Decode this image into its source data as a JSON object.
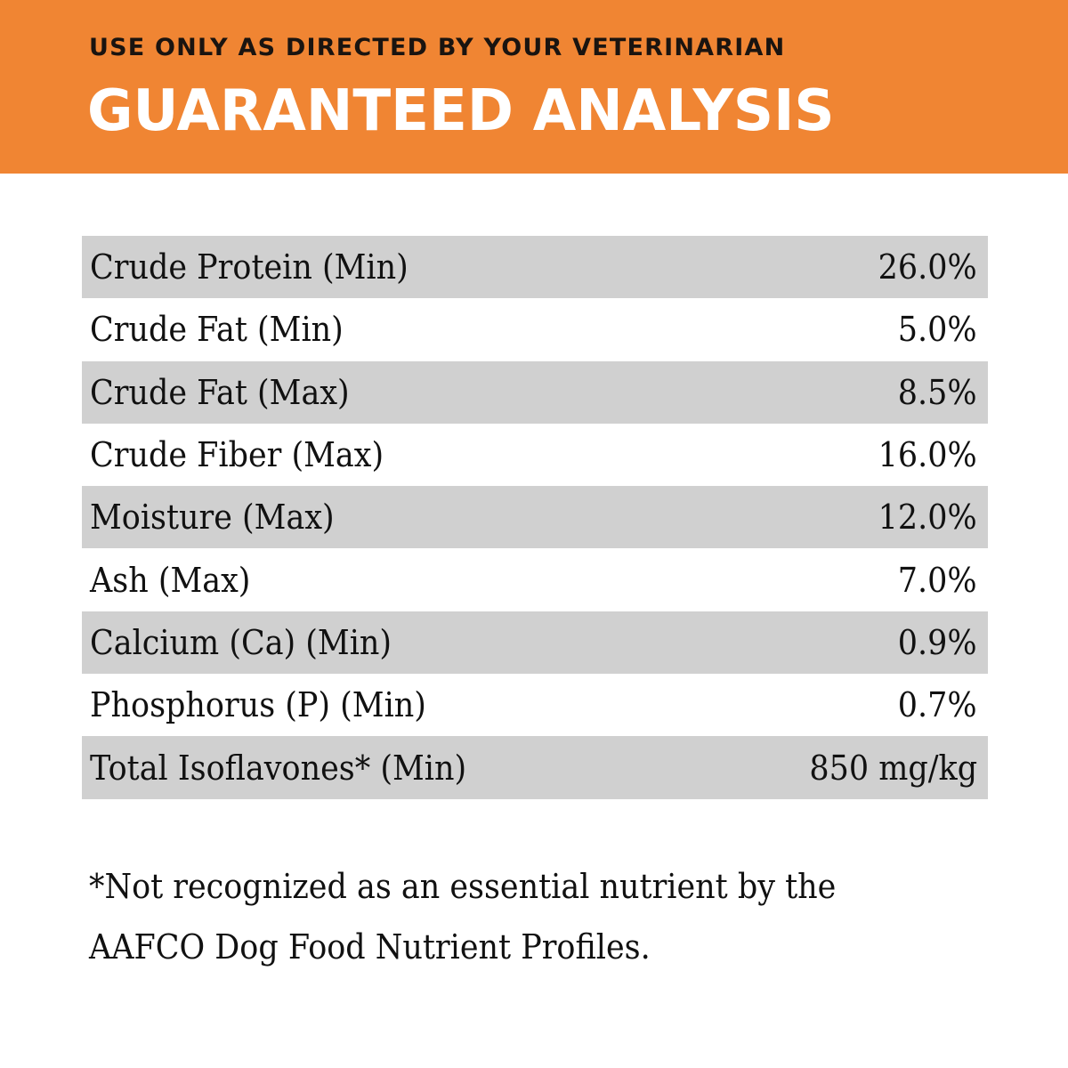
{
  "header": {
    "subtitle": "USE ONLY AS DIRECTED BY YOUR VETERINARIAN",
    "title": "GUARANTEED ANALYSIS",
    "background_color": "#f08533"
  },
  "analysis_table": {
    "rows": [
      {
        "label": "Crude Protein (Min)",
        "value": "26.0%"
      },
      {
        "label": "Crude Fat (Min)",
        "value": "5.0%"
      },
      {
        "label": "Crude Fat (Max)",
        "value": "8.5%"
      },
      {
        "label": "Crude Fiber (Max)",
        "value": "16.0%"
      },
      {
        "label": "Moisture (Max)",
        "value": "12.0%"
      },
      {
        "label": "Ash (Max)",
        "value": "7.0%"
      },
      {
        "label": "Calcium (Ca) (Min)",
        "value": "0.9%"
      },
      {
        "label": "Phosphorus (P) (Min)",
        "value": "0.7%"
      },
      {
        "label": "Total Isoflavones* (Min)",
        "value": "850 mg/kg"
      }
    ],
    "shaded_row_color": "#d0d0d0"
  },
  "footnote": {
    "line1": "*Not recognized as an essential nutrient by the",
    "line2": "AAFCO Dog Food Nutrient Profiles."
  }
}
